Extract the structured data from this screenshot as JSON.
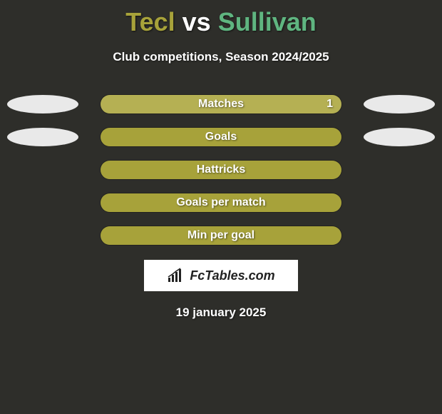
{
  "title": {
    "player1": "Tecl",
    "vs": "vs",
    "player2": "Sullivan",
    "player1_color": "#a7a23a",
    "vs_color": "#ffffff",
    "player2_color": "#5fb580"
  },
  "subtitle": "Club competitions, Season 2024/2025",
  "bars": {
    "fill_color": "#a7a23a",
    "highlight_color": "#b5b053",
    "ellipse_color": "#e9e9e9"
  },
  "rows": [
    {
      "label": "Matches",
      "left_ellipse": true,
      "right_ellipse": true,
      "value": "1",
      "fill": 100,
      "highlight": true
    },
    {
      "label": "Goals",
      "left_ellipse": true,
      "right_ellipse": true,
      "value": "",
      "fill": 100,
      "highlight": false
    },
    {
      "label": "Hattricks",
      "left_ellipse": false,
      "right_ellipse": false,
      "value": "",
      "fill": 100,
      "highlight": false
    },
    {
      "label": "Goals per match",
      "left_ellipse": false,
      "right_ellipse": false,
      "value": "",
      "fill": 100,
      "highlight": false
    },
    {
      "label": "Min per goal",
      "left_ellipse": false,
      "right_ellipse": false,
      "value": "",
      "fill": 100,
      "highlight": false
    }
  ],
  "logo": {
    "text": "FcTables.com"
  },
  "date": "19 january 2025",
  "background_color": "#2e2e2a"
}
